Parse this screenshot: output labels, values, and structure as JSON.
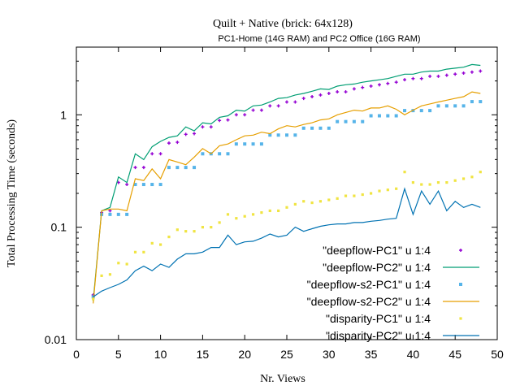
{
  "chart_data": {
    "type": "scatter",
    "title": "Quilt + Native (brick: 64x128)",
    "subtitle": "PC1-Home (14G RAM) and PC2 Office (16G RAM)",
    "xlabel": "Nr. Views",
    "ylabel": "Total Processing Time (seconds)",
    "xlim": [
      0,
      50
    ],
    "ylim": [
      0.01,
      4
    ],
    "yscale": "log",
    "legend_position": "bottom-right",
    "xticks": [
      {
        "value": 0,
        "label": "0"
      },
      {
        "value": 5,
        "label": "5"
      },
      {
        "value": 10,
        "label": "10"
      },
      {
        "value": 15,
        "label": "15"
      },
      {
        "value": 20,
        "label": "20"
      },
      {
        "value": 25,
        "label": "25"
      },
      {
        "value": 30,
        "label": "30"
      },
      {
        "value": 35,
        "label": "35"
      },
      {
        "value": 40,
        "label": "40"
      },
      {
        "value": 45,
        "label": "45"
      },
      {
        "value": 50,
        "label": "50"
      }
    ],
    "yticks": [
      {
        "value": 0.01,
        "label": "0.01"
      },
      {
        "value": 0.1,
        "label": "0.1"
      },
      {
        "value": 1,
        "label": "1"
      }
    ],
    "series": [
      {
        "name": "\"deepflow-PC1\" u 1:4",
        "style": "points-plus",
        "color": "#9400d3",
        "x": [
          2,
          3,
          4,
          5,
          6,
          7,
          8,
          9,
          10,
          11,
          12,
          13,
          14,
          15,
          16,
          17,
          18,
          19,
          20,
          21,
          22,
          23,
          24,
          25,
          26,
          27,
          28,
          29,
          30,
          31,
          32,
          33,
          34,
          35,
          36,
          37,
          38,
          39,
          40,
          41,
          42,
          43,
          44,
          45,
          46,
          47,
          48
        ],
        "values": [
          0.025,
          0.135,
          0.14,
          0.25,
          0.24,
          0.34,
          0.34,
          0.45,
          0.45,
          0.56,
          0.57,
          0.67,
          0.68,
          0.78,
          0.78,
          0.89,
          0.9,
          1.0,
          1.0,
          1.1,
          1.1,
          1.2,
          1.2,
          1.3,
          1.3,
          1.4,
          1.45,
          1.5,
          1.55,
          1.6,
          1.6,
          1.7,
          1.75,
          1.8,
          1.85,
          1.9,
          1.95,
          2.05,
          2.1,
          2.1,
          2.2,
          2.2,
          2.25,
          2.3,
          2.35,
          2.4,
          2.45
        ]
      },
      {
        "name": "\"deepflow-PC2\" u 1:4",
        "style": "line",
        "color": "#009e73",
        "x": [
          2,
          3,
          4,
          5,
          6,
          7,
          8,
          9,
          10,
          11,
          12,
          13,
          14,
          15,
          16,
          17,
          18,
          19,
          20,
          21,
          22,
          23,
          24,
          25,
          26,
          27,
          28,
          29,
          30,
          31,
          32,
          33,
          34,
          35,
          36,
          37,
          38,
          39,
          40,
          41,
          42,
          43,
          44,
          45,
          46,
          47,
          48
        ],
        "values": [
          0.022,
          0.14,
          0.15,
          0.28,
          0.25,
          0.45,
          0.4,
          0.52,
          0.58,
          0.63,
          0.65,
          0.78,
          0.72,
          0.85,
          0.83,
          0.95,
          0.98,
          1.1,
          1.08,
          1.2,
          1.22,
          1.3,
          1.4,
          1.42,
          1.5,
          1.55,
          1.62,
          1.7,
          1.68,
          1.8,
          1.85,
          1.88,
          1.95,
          2.0,
          2.05,
          2.1,
          2.2,
          2.3,
          2.3,
          2.4,
          2.45,
          2.45,
          2.55,
          2.6,
          2.65,
          2.8,
          2.75
        ]
      },
      {
        "name": "\"deepflow-s2-PC1\" u 1:4",
        "style": "points-square",
        "color": "#56b4e9",
        "x": [
          2,
          3,
          4,
          5,
          6,
          7,
          8,
          9,
          10,
          11,
          12,
          13,
          14,
          15,
          16,
          17,
          18,
          19,
          20,
          21,
          22,
          23,
          24,
          25,
          26,
          27,
          28,
          29,
          30,
          31,
          32,
          33,
          34,
          35,
          36,
          37,
          38,
          39,
          40,
          41,
          42,
          43,
          44,
          45,
          46,
          47,
          48
        ],
        "values": [
          0.024,
          0.13,
          0.13,
          0.13,
          0.13,
          0.24,
          0.24,
          0.24,
          0.24,
          0.34,
          0.34,
          0.34,
          0.34,
          0.45,
          0.45,
          0.45,
          0.45,
          0.55,
          0.55,
          0.55,
          0.55,
          0.66,
          0.66,
          0.66,
          0.66,
          0.76,
          0.76,
          0.76,
          0.76,
          0.87,
          0.87,
          0.87,
          0.87,
          0.98,
          0.98,
          0.98,
          0.98,
          1.09,
          1.09,
          1.09,
          1.09,
          1.2,
          1.2,
          1.2,
          1.2,
          1.31,
          1.31
        ]
      },
      {
        "name": "\"deepflow-s2-PC2\" u 1:4",
        "style": "line",
        "color": "#e69f00",
        "x": [
          2,
          3,
          4,
          5,
          6,
          7,
          8,
          9,
          10,
          11,
          12,
          13,
          14,
          15,
          16,
          17,
          18,
          19,
          20,
          21,
          22,
          23,
          24,
          25,
          26,
          27,
          28,
          29,
          30,
          31,
          32,
          33,
          34,
          35,
          36,
          37,
          38,
          39,
          40,
          41,
          42,
          43,
          44,
          45,
          46,
          47,
          48
        ],
        "values": [
          0.021,
          0.14,
          0.145,
          0.145,
          0.14,
          0.27,
          0.26,
          0.33,
          0.27,
          0.4,
          0.38,
          0.36,
          0.42,
          0.5,
          0.45,
          0.53,
          0.55,
          0.6,
          0.65,
          0.66,
          0.7,
          0.68,
          0.75,
          0.8,
          0.78,
          0.82,
          0.85,
          0.9,
          0.92,
          1.0,
          1.05,
          1.1,
          1.08,
          1.15,
          1.15,
          1.2,
          1.12,
          1.0,
          1.1,
          1.2,
          1.25,
          1.3,
          1.35,
          1.4,
          1.45,
          1.6,
          1.55
        ]
      },
      {
        "name": "\"disparity-PC1\" u 1:4",
        "style": "points-dot",
        "color": "#f0e442",
        "x": [
          2,
          3,
          4,
          5,
          6,
          7,
          8,
          9,
          10,
          11,
          12,
          13,
          14,
          15,
          16,
          17,
          18,
          19,
          20,
          21,
          22,
          23,
          24,
          25,
          26,
          27,
          28,
          29,
          30,
          31,
          32,
          33,
          34,
          35,
          36,
          37,
          38,
          39,
          40,
          41,
          42,
          43,
          44,
          45,
          46,
          47,
          48
        ],
        "values": [
          0.023,
          0.037,
          0.038,
          0.048,
          0.047,
          0.06,
          0.06,
          0.072,
          0.07,
          0.082,
          0.095,
          0.092,
          0.092,
          0.1,
          0.1,
          0.11,
          0.13,
          0.12,
          0.125,
          0.13,
          0.135,
          0.14,
          0.14,
          0.15,
          0.16,
          0.17,
          0.165,
          0.17,
          0.175,
          0.18,
          0.19,
          0.19,
          0.195,
          0.2,
          0.21,
          0.215,
          0.22,
          0.31,
          0.25,
          0.24,
          0.24,
          0.25,
          0.25,
          0.26,
          0.27,
          0.28,
          0.31
        ]
      },
      {
        "name": "\"disparity-PC2\" u 1:4",
        "style": "line",
        "color": "#0072b2",
        "x": [
          2,
          3,
          4,
          5,
          6,
          7,
          8,
          9,
          10,
          11,
          12,
          13,
          14,
          15,
          16,
          17,
          18,
          19,
          20,
          21,
          22,
          23,
          24,
          25,
          26,
          27,
          28,
          29,
          30,
          31,
          32,
          33,
          34,
          35,
          36,
          37,
          38,
          39,
          40,
          41,
          42,
          43,
          44,
          45,
          46,
          47,
          48
        ],
        "values": [
          0.024,
          0.027,
          0.029,
          0.031,
          0.034,
          0.041,
          0.045,
          0.041,
          0.047,
          0.044,
          0.052,
          0.058,
          0.058,
          0.06,
          0.066,
          0.066,
          0.085,
          0.07,
          0.074,
          0.075,
          0.08,
          0.087,
          0.082,
          0.085,
          0.1,
          0.092,
          0.097,
          0.102,
          0.105,
          0.107,
          0.107,
          0.11,
          0.11,
          0.113,
          0.115,
          0.118,
          0.12,
          0.22,
          0.13,
          0.21,
          0.16,
          0.21,
          0.14,
          0.17,
          0.15,
          0.16,
          0.15
        ]
      }
    ]
  }
}
